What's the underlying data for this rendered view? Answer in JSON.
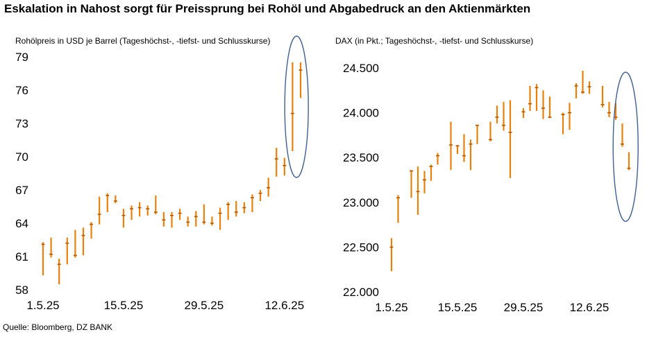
{
  "title": "Eskalation in Nahost sorgt für Preissprung bei Rohöl und Abgabedruck an den Aktienmärkten",
  "source": "Quelle: Bloomberg, DZ BANK",
  "colors": {
    "bar": "#e8800c",
    "highlight": "#3f5f90"
  },
  "chart_data": [
    {
      "type": "bar",
      "subtype": "high-low-close",
      "title": "Rohölpreis in USD je Barrel (Tageshöchst-, -tiefst- und Schlusskurse)",
      "ylim": [
        58,
        79
      ],
      "yticks": [
        58,
        61,
        64,
        67,
        70,
        73,
        76,
        79
      ],
      "xticks": [
        {
          "label": "1.5.25",
          "i": 0
        },
        {
          "label": "15.5.25",
          "i": 10
        },
        {
          "label": "29.5.25",
          "i": 20
        },
        {
          "label": "12.6.25",
          "i": 30
        }
      ],
      "highlight": "last two sessions circled",
      "series": [
        {
          "high": 62.3,
          "low": 59.3,
          "close": 62.1
        },
        {
          "high": 62.7,
          "low": 60.9,
          "close": 61.2
        },
        {
          "high": 60.8,
          "low": 58.5,
          "close": 60.3
        },
        {
          "high": 62.7,
          "low": 60.3,
          "close": 62.2
        },
        {
          "high": 63.4,
          "low": 60.9,
          "close": 61.1
        },
        {
          "high": 63.6,
          "low": 61.1,
          "close": 62.9
        },
        {
          "high": 64.1,
          "low": 62.6,
          "close": 63.9
        },
        {
          "high": 66.4,
          "low": 63.9,
          "close": 64.8
        },
        {
          "high": 66.7,
          "low": 65.0,
          "close": 66.5
        },
        {
          "high": 66.5,
          "low": 65.8,
          "close": 66.0
        },
        {
          "high": 65.3,
          "low": 63.6,
          "close": 64.7
        },
        {
          "high": 65.6,
          "low": 64.3,
          "close": 65.3
        },
        {
          "high": 65.9,
          "low": 64.6,
          "close": 65.4
        },
        {
          "high": 65.6,
          "low": 64.7,
          "close": 65.3
        },
        {
          "high": 66.5,
          "low": 64.8,
          "close": 65.0
        },
        {
          "high": 65.0,
          "low": 63.7,
          "close": 64.3
        },
        {
          "high": 65.0,
          "low": 63.6,
          "close": 64.7
        },
        {
          "high": 65.3,
          "low": 64.3,
          "close": 64.9
        },
        {
          "high": 64.6,
          "low": 63.7,
          "close": 64.1
        },
        {
          "high": 65.1,
          "low": 63.7,
          "close": 64.6
        },
        {
          "high": 65.7,
          "low": 63.9,
          "close": 64.1
        },
        {
          "high": 64.6,
          "low": 63.8,
          "close": 64.0
        },
        {
          "high": 65.4,
          "low": 63.4,
          "close": 64.9
        },
        {
          "high": 65.9,
          "low": 64.3,
          "close": 65.7
        },
        {
          "high": 66.0,
          "low": 64.6,
          "close": 65.0
        },
        {
          "high": 65.9,
          "low": 64.9,
          "close": 65.4
        },
        {
          "high": 66.6,
          "low": 65.0,
          "close": 66.3
        },
        {
          "high": 67.0,
          "low": 66.0,
          "close": 66.7
        },
        {
          "high": 68.1,
          "low": 66.4,
          "close": 67.2
        },
        {
          "high": 70.8,
          "low": 68.2,
          "close": 69.8
        },
        {
          "high": 69.9,
          "low": 68.3,
          "close": 69.2
        },
        {
          "high": 78.5,
          "low": 70.5,
          "close": 73.9
        },
        {
          "high": 78.5,
          "low": 75.3,
          "close": 77.8
        }
      ]
    },
    {
      "type": "bar",
      "subtype": "high-low-close",
      "title": "DAX (in Pkt.; Tageshöchst-, -tiefst- und Schlusskurse)",
      "ylim": [
        22000,
        24500
      ],
      "yticks": [
        {
          "value": 22000,
          "label": "22.000"
        },
        {
          "value": 22500,
          "label": "22.500"
        },
        {
          "value": 23000,
          "label": "23.000"
        },
        {
          "value": 23500,
          "label": "23.500"
        },
        {
          "value": 24000,
          "label": "24.000"
        },
        {
          "value": 24500,
          "label": "24.500"
        }
      ],
      "xticks": [
        {
          "label": "1.5.25",
          "i": 0
        },
        {
          "label": "15.5.25",
          "i": 10
        },
        {
          "label": "29.5.25",
          "i": 20
        },
        {
          "label": "12.6.25",
          "i": 30
        }
      ],
      "highlight": "last two sessions circled",
      "series": [
        {
          "high": 22600,
          "low": 22230,
          "close": 22500
        },
        {
          "high": 23080,
          "low": 22770,
          "close": 23050
        },
        null,
        {
          "high": 23360,
          "low": 23050,
          "close": 23350
        },
        {
          "high": 23400,
          "low": 22860,
          "close": 23120
        },
        {
          "high": 23350,
          "low": 23100,
          "close": 23250
        },
        {
          "high": 23420,
          "low": 23240,
          "close": 23400
        },
        {
          "high": 23550,
          "low": 23420,
          "close": 23520
        },
        null,
        {
          "high": 23900,
          "low": 23360,
          "close": 23640
        },
        {
          "high": 23640,
          "low": 23540,
          "close": 23630
        },
        {
          "high": 23760,
          "low": 23450,
          "close": 23520
        },
        {
          "high": 23700,
          "low": 23360,
          "close": 23650
        },
        {
          "high": 23860,
          "low": 23650,
          "close": 23860
        },
        null,
        {
          "high": 23900,
          "low": 23680,
          "close": 23700
        },
        {
          "high": 24080,
          "low": 23880,
          "close": 23950
        },
        {
          "high": 24120,
          "low": 23800,
          "close": 23860
        },
        {
          "high": 24140,
          "low": 23270,
          "close": 23780
        },
        null,
        {
          "high": 24050,
          "low": 23940,
          "close": 24010
        },
        {
          "high": 24300,
          "low": 24020,
          "close": 24100
        },
        {
          "high": 24320,
          "low": 24020,
          "close": 24280
        },
        {
          "high": 24250,
          "low": 23930,
          "close": 24050
        },
        {
          "high": 24180,
          "low": 23940,
          "close": 23950
        },
        null,
        {
          "high": 24000,
          "low": 23760,
          "close": 23980
        },
        {
          "high": 24110,
          "low": 23810,
          "close": 24000
        },
        {
          "high": 24330,
          "low": 24160,
          "close": 24300
        },
        {
          "high": 24470,
          "low": 24210,
          "close": 24230
        },
        {
          "high": 24350,
          "low": 24210,
          "close": 24290
        },
        null,
        {
          "high": 24300,
          "low": 24060,
          "close": 24090
        },
        {
          "high": 24120,
          "low": 23950,
          "close": 24000
        },
        {
          "high": 24110,
          "low": 23920,
          "close": 23950
        },
        {
          "high": 23880,
          "low": 23620,
          "close": 23650
        },
        {
          "high": 23560,
          "low": 23360,
          "close": 23380
        }
      ]
    }
  ]
}
